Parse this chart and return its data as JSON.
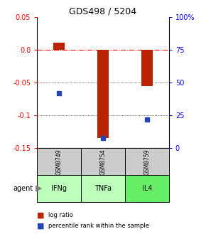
{
  "title": "GDS498 / 5204",
  "samples": [
    "GSM8749",
    "GSM8754",
    "GSM8759"
  ],
  "agents": [
    "IFNg",
    "TNFa",
    "IL4"
  ],
  "log_ratios": [
    0.01,
    -0.135,
    -0.055
  ],
  "percentiles": [
    42,
    8,
    22
  ],
  "bar_color": "#bb2200",
  "dot_color": "#2244bb",
  "ylim_left": [
    -0.15,
    0.05
  ],
  "yticks_left": [
    0.05,
    0.0,
    -0.05,
    -0.1,
    -0.15
  ],
  "yticks_right": [
    100,
    75,
    50,
    25,
    0
  ],
  "sample_bg": "#cccccc",
  "agent_colors": [
    "#bbffbb",
    "#bbffbb",
    "#66ee66"
  ],
  "legend_log_ratio": "log ratio",
  "legend_percentile": "percentile rank within the sample",
  "bar_width": 0.25
}
